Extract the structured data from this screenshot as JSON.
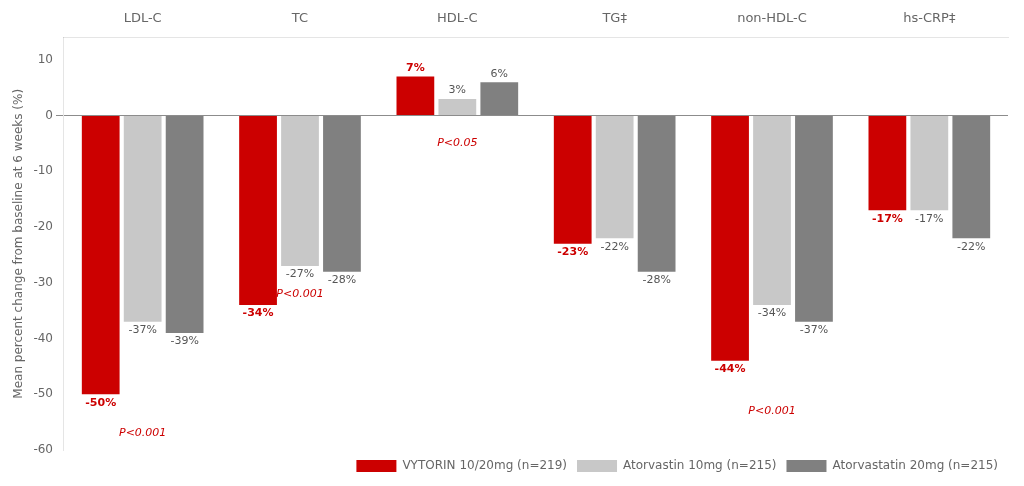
{
  "chart_data": {
    "type": "bar",
    "categories": [
      "LDL-C",
      "TC",
      "HDL-C",
      "TG‡",
      "non-HDL-C",
      "hs-CRP‡"
    ],
    "series": [
      {
        "name": "VYTORIN 10/20mg (n=219)",
        "color": "#cc0000",
        "values": [
          -50,
          -34,
          7,
          -23,
          -44,
          -17
        ],
        "value_labels": [
          "-50%",
          "-34%",
          "7%",
          "-23%",
          "-44%",
          "-17%"
        ]
      },
      {
        "name": "Atorvastin 10mg (n=215)",
        "color": "#c8c8c8",
        "values": [
          -37,
          -27,
          3,
          -22,
          -34,
          -17
        ],
        "value_labels": [
          "-37%",
          "-27%",
          "3%",
          "-22%",
          "-34%",
          "-17%"
        ]
      },
      {
        "name": "Atorvastatin 20mg (n=215)",
        "color": "#808080",
        "values": [
          -39,
          -28,
          6,
          -28,
          -37,
          -22
        ],
        "value_labels": [
          "-39%",
          "-28%",
          "6%",
          "-28%",
          "-37%",
          "-22%"
        ]
      }
    ],
    "y_label": "Mean percent change from baseline at 6 weeks (%)",
    "ylim": [
      -60,
      14
    ],
    "yticks": [
      -60,
      -50,
      -40,
      -30,
      -20,
      -10,
      0,
      10
    ],
    "annotations": [
      {
        "text": "P<0.001",
        "category": "LDL-C",
        "y": -56,
        "color": "#cc0000"
      },
      {
        "text": "P<0.001",
        "category": "TC",
        "y": -31,
        "color": "#cc0000"
      },
      {
        "text": "P<0.05",
        "category": "HDL-C",
        "y": -4,
        "color": "#cc0000"
      },
      {
        "text": "P<0.001",
        "category": "non-HDL-C",
        "y": -52,
        "color": "#cc0000"
      }
    ],
    "data_labels": true,
    "grid": false,
    "legend": "lower right"
  }
}
